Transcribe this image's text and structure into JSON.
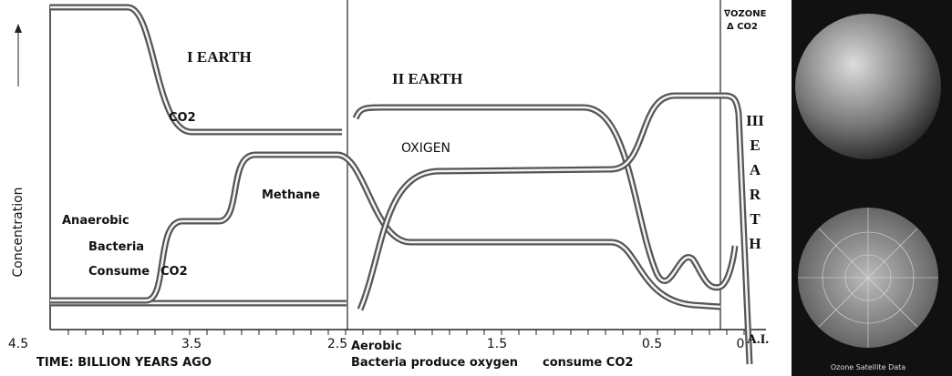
{
  "y_axis_label": "Concentration",
  "stages": {
    "one": "I EARTH",
    "two": "II EARTH",
    "three": [
      "III",
      "E",
      "A",
      "R",
      "T",
      "H"
    ]
  },
  "curve_labels": {
    "co2_top": "CO2",
    "oxygen": "OXIGEN",
    "methane": "Methane",
    "ozone": "∇OZONE",
    "co2_right": "Δ CO2"
  },
  "anaerobic": [
    "Anaerobic",
    "Bacteria",
    "Consume",
    "CO2"
  ],
  "x_ticks": [
    "4.5",
    "3.5",
    "2.5",
    "1.5",
    "0.5",
    "0"
  ],
  "x_end_label": "A.I.",
  "x_axis_label": "TIME: BILLION YEARS AGO",
  "aerobic": {
    "title": "Aerobic",
    "produce": "Bacteria produce oxygen",
    "consume": "consume CO2"
  },
  "image_caption": "Ozone Satellite Data"
}
